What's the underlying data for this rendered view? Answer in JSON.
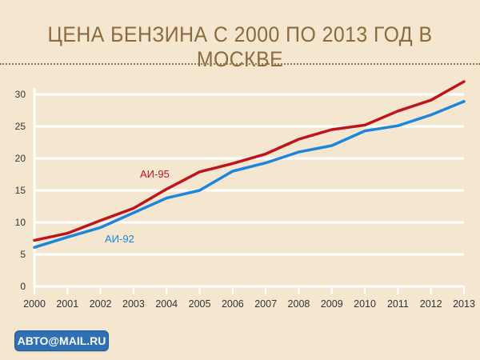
{
  "title": "ЦЕНА БЕНЗИНА С 2000 ПО 2013 ГОД В МОСКВЕ",
  "logo_text": "АВТО@MAIL.RU",
  "colors": {
    "background": "#f5e6d0",
    "grid": "#ffffff",
    "title": "#8a6a3e",
    "ai95": "#c0141c",
    "ai92": "#1a86dc"
  },
  "chart_data": {
    "type": "line",
    "title": "ЦЕНА БЕНЗИНА С 2000 ПО 2013 ГОД В МОСКВЕ",
    "xlabel": "",
    "ylabel": "",
    "categories": [
      "2000",
      "2001",
      "2002",
      "2003",
      "2004",
      "2005",
      "2006",
      "2007",
      "2008",
      "2009",
      "2010",
      "2011",
      "2012",
      "2013"
    ],
    "ylim": [
      0,
      30
    ],
    "yticks": [
      0,
      5,
      10,
      15,
      20,
      25,
      30
    ],
    "grid": true,
    "series": [
      {
        "name": "АИ-95",
        "color": "#c0141c",
        "values": [
          7.2,
          8.3,
          10.3,
          12.2,
          15.2,
          17.9,
          19.2,
          20.7,
          23.0,
          24.5,
          25.2,
          27.4,
          29.1,
          32.0
        ]
      },
      {
        "name": "АИ-92",
        "color": "#1a86dc",
        "values": [
          6.1,
          7.7,
          9.2,
          11.5,
          13.8,
          15.0,
          18.0,
          19.3,
          21.0,
          22.0,
          24.3,
          25.1,
          26.8,
          28.9
        ]
      }
    ]
  }
}
